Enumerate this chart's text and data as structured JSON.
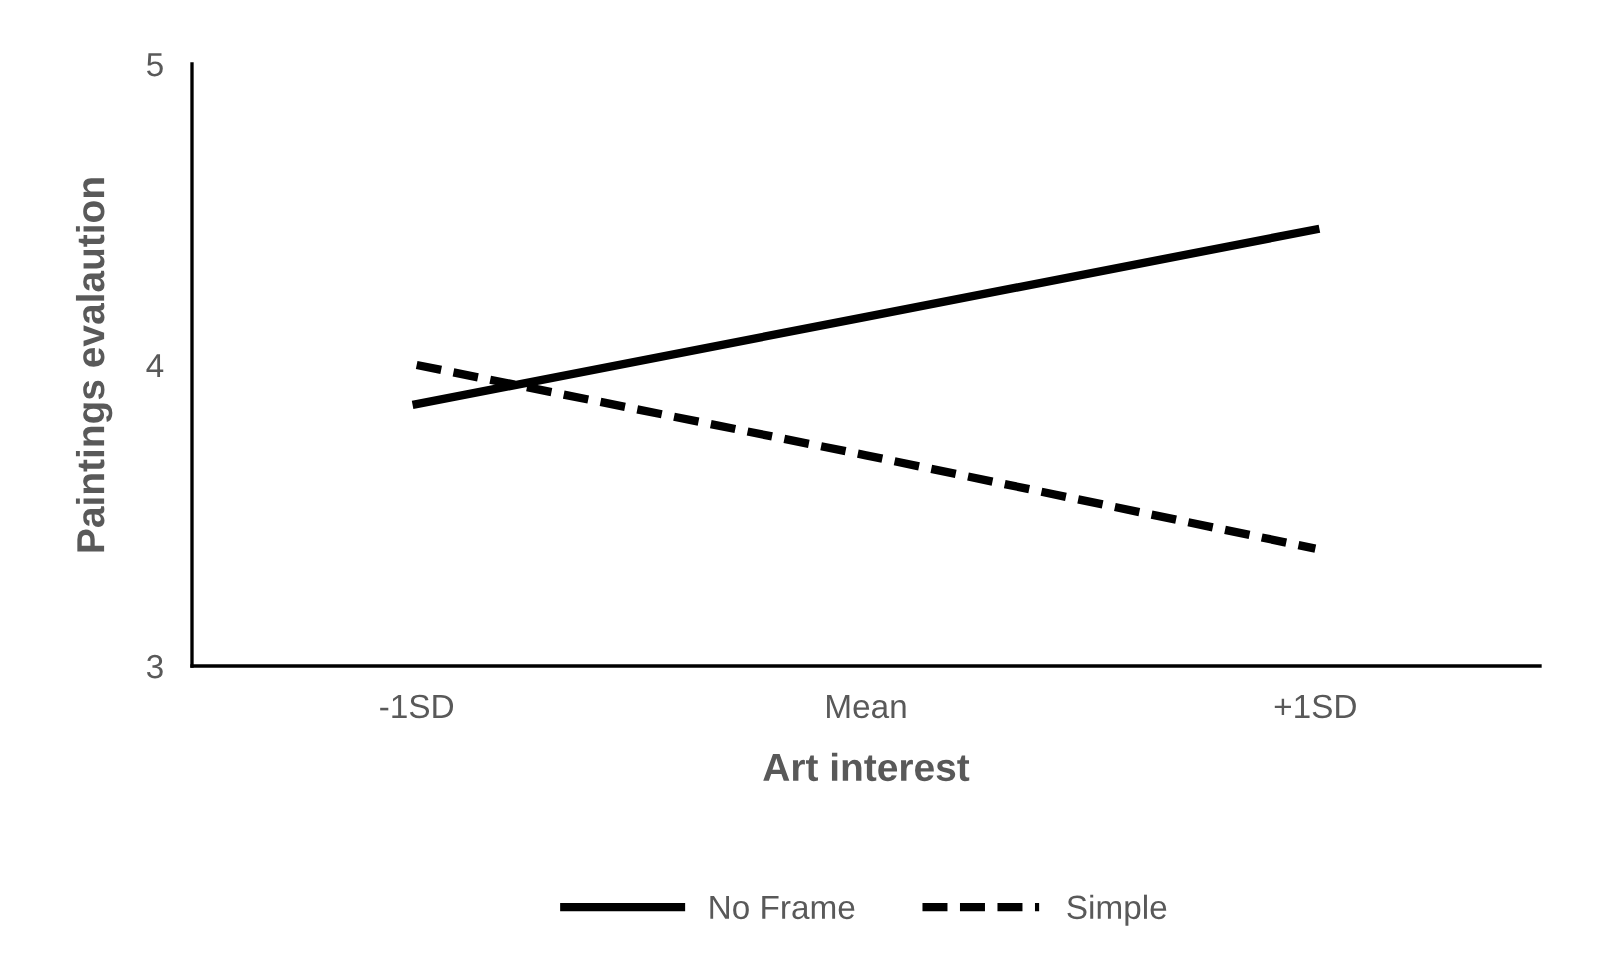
{
  "chart_data": {
    "type": "line",
    "xlabel": "Art interest",
    "ylabel": "Paintings evalaution",
    "categories": [
      "-1SD",
      "Mean",
      "+1SD"
    ],
    "series": [
      {
        "name": "No Frame",
        "color": "#000000",
        "line_style": "solid",
        "values": [
          3.87,
          4.16,
          4.45
        ]
      },
      {
        "name": "Simple",
        "color": "#000000",
        "line_style": "dashed",
        "values": [
          4.0,
          3.7,
          3.39
        ]
      }
    ],
    "ylim": [
      3,
      5
    ],
    "yticks": [
      3,
      4,
      5
    ],
    "grid": false,
    "legend": "bottom",
    "marker": "none"
  }
}
